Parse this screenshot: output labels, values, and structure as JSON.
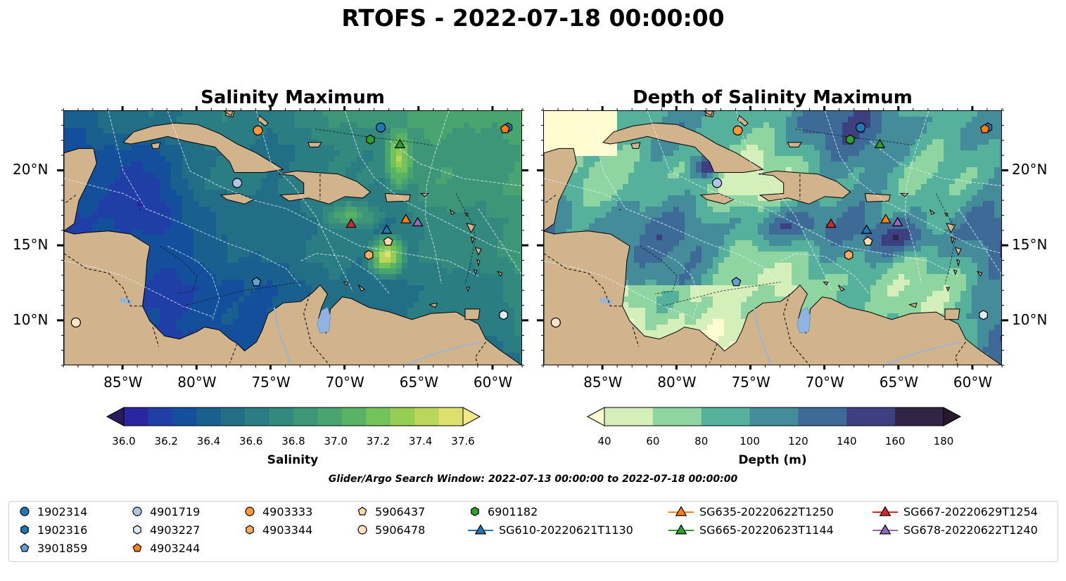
{
  "figure": {
    "title": "RTOFS - 2022-07-18 00:00:00",
    "window_text": "Glider/Argo Search Window: 2022-07-13 00:00:00 to 2022-07-18 00:00:00"
  },
  "panels": [
    {
      "title": "Salinity Maximum",
      "colorbar": {
        "label": "Salinity",
        "ticks": [
          "36.0",
          "36.2",
          "36.4",
          "36.6",
          "36.8",
          "37.0",
          "37.2",
          "37.4",
          "37.6"
        ],
        "range": [
          36.0,
          37.6
        ],
        "extend": "both",
        "colormap": "haline"
      }
    },
    {
      "title": "Depth of Salinity Maximum",
      "colorbar": {
        "label": "Depth (m)",
        "ticks": [
          "40",
          "60",
          "80",
          "100",
          "120",
          "140",
          "160",
          "180"
        ],
        "range": [
          40,
          180
        ],
        "extend": "both",
        "colormap": "deep"
      }
    }
  ],
  "axes": {
    "lon_ticks": [
      "85°W",
      "80°W",
      "75°W",
      "70°W",
      "65°W",
      "60°W"
    ],
    "lat_ticks": [
      "20°N",
      "15°N",
      "10°N"
    ],
    "lon_range": [
      -89,
      -58
    ],
    "lat_range": [
      7,
      24
    ]
  },
  "colors": {
    "land": "#d2b48c",
    "salinity_cmap": [
      "#2a1c5c",
      "#2a26a0",
      "#1f3ea6",
      "#134f9a",
      "#19608e",
      "#236e87",
      "#2b7d84",
      "#34897f",
      "#3e9679",
      "#49a470",
      "#58b364",
      "#74c25a",
      "#96cd55",
      "#bcd65b",
      "#dde06e",
      "#f4e88c"
    ],
    "depth_cmap": [
      "#fefcd0",
      "#d5efba",
      "#8ed5a2",
      "#55b09c",
      "#458c9b",
      "#3d6a96",
      "#3d4080",
      "#322444",
      "#281a2c"
    ]
  },
  "legend": {
    "items": [
      {
        "label": "1902314",
        "marker": "circle",
        "color": "#1f77b4"
      },
      {
        "label": "1902316",
        "marker": "hexagon",
        "color": "#1f77b4"
      },
      {
        "label": "3901859",
        "marker": "pentagon",
        "color": "#5fa2d8"
      },
      {
        "label": "4901719",
        "marker": "circle",
        "color": "#aec7e8"
      },
      {
        "label": "4903227",
        "marker": "hexagon",
        "color": "#deebf7"
      },
      {
        "label": "4903244",
        "marker": "pentagon",
        "color": "#ff7f0e"
      },
      {
        "label": "4903333",
        "marker": "circle",
        "color": "#ff9933"
      },
      {
        "label": "4903344",
        "marker": "hexagon",
        "color": "#ffad5c"
      },
      {
        "label": "5906437",
        "marker": "pentagon",
        "color": "#ffd9a8"
      },
      {
        "label": "5906478",
        "marker": "circle",
        "color": "#ffe3c4"
      },
      {
        "label": "6901182",
        "marker": "hexagon",
        "color": "#2ca02c"
      },
      {
        "label": "SG610-20220621T1130",
        "marker": "triangle-line",
        "color": "#1f77b4"
      },
      {
        "label": "SG635-20220622T1250",
        "marker": "triangle-line",
        "color": "#ff7f0e"
      },
      {
        "label": "SG665-20220623T1144",
        "marker": "triangle-line",
        "color": "#2ca02c"
      },
      {
        "label": "SG667-20220629T1254",
        "marker": "triangle-line",
        "color": "#d62728"
      },
      {
        "label": "SG678-20220622T1240",
        "marker": "triangle-line",
        "color": "#9467bd"
      }
    ]
  },
  "markers": [
    {
      "id": "1902314",
      "lon": -67.6,
      "lat": 22.9
    },
    {
      "id": "1902316",
      "lon": -59.0,
      "lat": 22.9
    },
    {
      "id": "3901859",
      "lon": -76.0,
      "lat": 12.6
    },
    {
      "id": "4901719",
      "lon": -77.3,
      "lat": 19.2
    },
    {
      "id": "4903227",
      "lon": -59.3,
      "lat": 10.4
    },
    {
      "id": "4903244",
      "lon": -59.2,
      "lat": 22.8
    },
    {
      "id": "4903333",
      "lon": -75.9,
      "lat": 22.7
    },
    {
      "id": "4903344",
      "lon": -68.4,
      "lat": 14.4
    },
    {
      "id": "5906437",
      "lon": -67.1,
      "lat": 15.3
    },
    {
      "id": "5906478",
      "lon": -88.2,
      "lat": 9.9
    },
    {
      "id": "6901182",
      "lon": -68.3,
      "lat": 22.1
    },
    {
      "id": "SG610-20220621T1130",
      "lon": -67.2,
      "lat": 16.1
    },
    {
      "id": "SG635-20220622T1250",
      "lon": -65.9,
      "lat": 16.8
    },
    {
      "id": "SG665-20220623T1144",
      "lon": -66.3,
      "lat": 21.8
    },
    {
      "id": "SG667-20220629T1254",
      "lon": -69.6,
      "lat": 16.5
    },
    {
      "id": "SG678-20220622T1240",
      "lon": -65.1,
      "lat": 16.6
    }
  ]
}
